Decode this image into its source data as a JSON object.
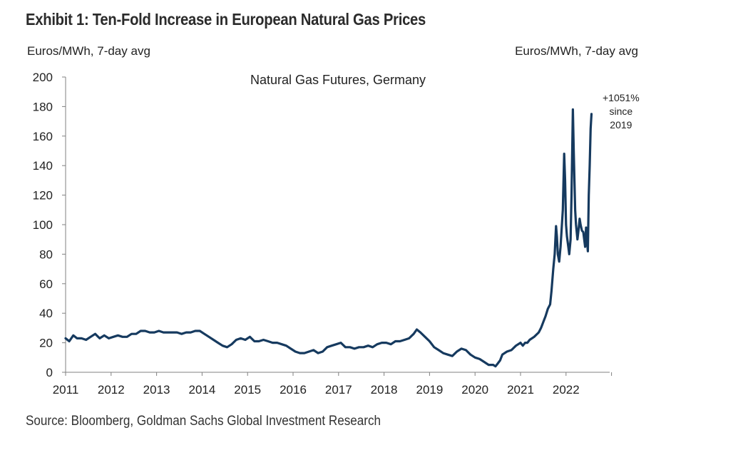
{
  "header": {
    "exhibit_title": "Exhibit 1: Ten-Fold Increase in European Natural Gas Prices",
    "unit_left": "Euros/MWh, 7-day avg",
    "unit_right": "Euros/MWh, 7-day avg"
  },
  "footer": {
    "source": "Source: Bloomberg, Goldman Sachs Global Investment Research"
  },
  "colors": {
    "line": "#163a5f",
    "axis": "#808080"
  },
  "chart_data": {
    "type": "line",
    "title": "Natural Gas Futures, Germany",
    "xlabel": "",
    "ylabel": "Euros/MWh, 7-day avg",
    "xlim": [
      2011,
      2022.95
    ],
    "ylim": [
      0,
      200
    ],
    "yticks": [
      0,
      20,
      40,
      60,
      80,
      100,
      120,
      140,
      160,
      180,
      200
    ],
    "xticks": [
      "2011",
      "2012",
      "2013",
      "2014",
      "2015",
      "2016",
      "2017",
      "2018",
      "2019",
      "2020",
      "2021",
      "2022"
    ],
    "grid": false,
    "annotation": {
      "lines": [
        "+1051%",
        "since",
        "2019"
      ],
      "x": 2022.55,
      "y": 175
    },
    "series": [
      {
        "name": "Natural Gas Futures, Germany",
        "x": [
          2011.0,
          2011.08,
          2011.17,
          2011.25,
          2011.35,
          2011.45,
          2011.55,
          2011.65,
          2011.75,
          2011.85,
          2011.95,
          2012.05,
          2012.15,
          2012.25,
          2012.35,
          2012.45,
          2012.55,
          2012.65,
          2012.75,
          2012.85,
          2012.95,
          2013.05,
          2013.15,
          2013.25,
          2013.35,
          2013.45,
          2013.55,
          2013.65,
          2013.75,
          2013.85,
          2013.95,
          2014.05,
          2014.15,
          2014.25,
          2014.35,
          2014.45,
          2014.55,
          2014.65,
          2014.75,
          2014.85,
          2014.95,
          2015.05,
          2015.15,
          2015.25,
          2015.35,
          2015.45,
          2015.55,
          2015.65,
          2015.75,
          2015.85,
          2015.95,
          2016.05,
          2016.15,
          2016.25,
          2016.35,
          2016.45,
          2016.55,
          2016.65,
          2016.75,
          2016.85,
          2016.95,
          2017.05,
          2017.15,
          2017.25,
          2017.35,
          2017.45,
          2017.55,
          2017.65,
          2017.75,
          2017.85,
          2017.95,
          2018.05,
          2018.15,
          2018.25,
          2018.35,
          2018.45,
          2018.55,
          2018.65,
          2018.72,
          2018.8,
          2018.9,
          2019.0,
          2019.1,
          2019.2,
          2019.3,
          2019.4,
          2019.5,
          2019.6,
          2019.7,
          2019.8,
          2019.9,
          2020.0,
          2020.1,
          2020.2,
          2020.3,
          2020.4,
          2020.45,
          2020.5,
          2020.55,
          2020.6,
          2020.7,
          2020.8,
          2020.9,
          2021.0,
          2021.05,
          2021.1,
          2021.15,
          2021.2,
          2021.3,
          2021.4,
          2021.45,
          2021.5,
          2021.55,
          2021.6,
          2021.65,
          2021.68,
          2021.72,
          2021.75,
          2021.78,
          2021.8,
          2021.82,
          2021.85,
          2021.88,
          2021.9,
          2021.93,
          2021.96,
          2021.98,
          2022.0,
          2022.02,
          2022.05,
          2022.07,
          2022.1,
          2022.12,
          2022.15,
          2022.17,
          2022.2,
          2022.22,
          2022.25,
          2022.28,
          2022.3,
          2022.32,
          2022.35,
          2022.38,
          2022.4,
          2022.42,
          2022.44,
          2022.46,
          2022.48,
          2022.5,
          2022.52,
          2022.54,
          2022.56
        ],
        "values": [
          23,
          21,
          25,
          23,
          23,
          22,
          24,
          26,
          23,
          25,
          23,
          24,
          25,
          24,
          24,
          26,
          26,
          28,
          28,
          27,
          27,
          28,
          27,
          27,
          27,
          27,
          26,
          27,
          27,
          28,
          28,
          26,
          24,
          22,
          20,
          18,
          17,
          19,
          22,
          23,
          22,
          24,
          21,
          21,
          22,
          21,
          20,
          20,
          19,
          18,
          16,
          14,
          13,
          13,
          14,
          15,
          13,
          14,
          17,
          18,
          19,
          20,
          17,
          17,
          16,
          17,
          17,
          18,
          17,
          19,
          20,
          20,
          19,
          21,
          21,
          22,
          23,
          26,
          29,
          27,
          24,
          21,
          17,
          15,
          13,
          12,
          11,
          14,
          16,
          15,
          12,
          10,
          9,
          7,
          5,
          5,
          4,
          6,
          8,
          12,
          14,
          15,
          18,
          20,
          18,
          20,
          20,
          22,
          24,
          27,
          30,
          34,
          38,
          43,
          46,
          55,
          70,
          80,
          99,
          92,
          80,
          75,
          85,
          95,
          110,
          148,
          130,
          100,
          92,
          85,
          80,
          90,
          120,
          178,
          150,
          110,
          100,
          90,
          98,
          104,
          100,
          96,
          95,
          90,
          85,
          98,
          90,
          82,
          120,
          140,
          165,
          175
        ]
      }
    ]
  }
}
